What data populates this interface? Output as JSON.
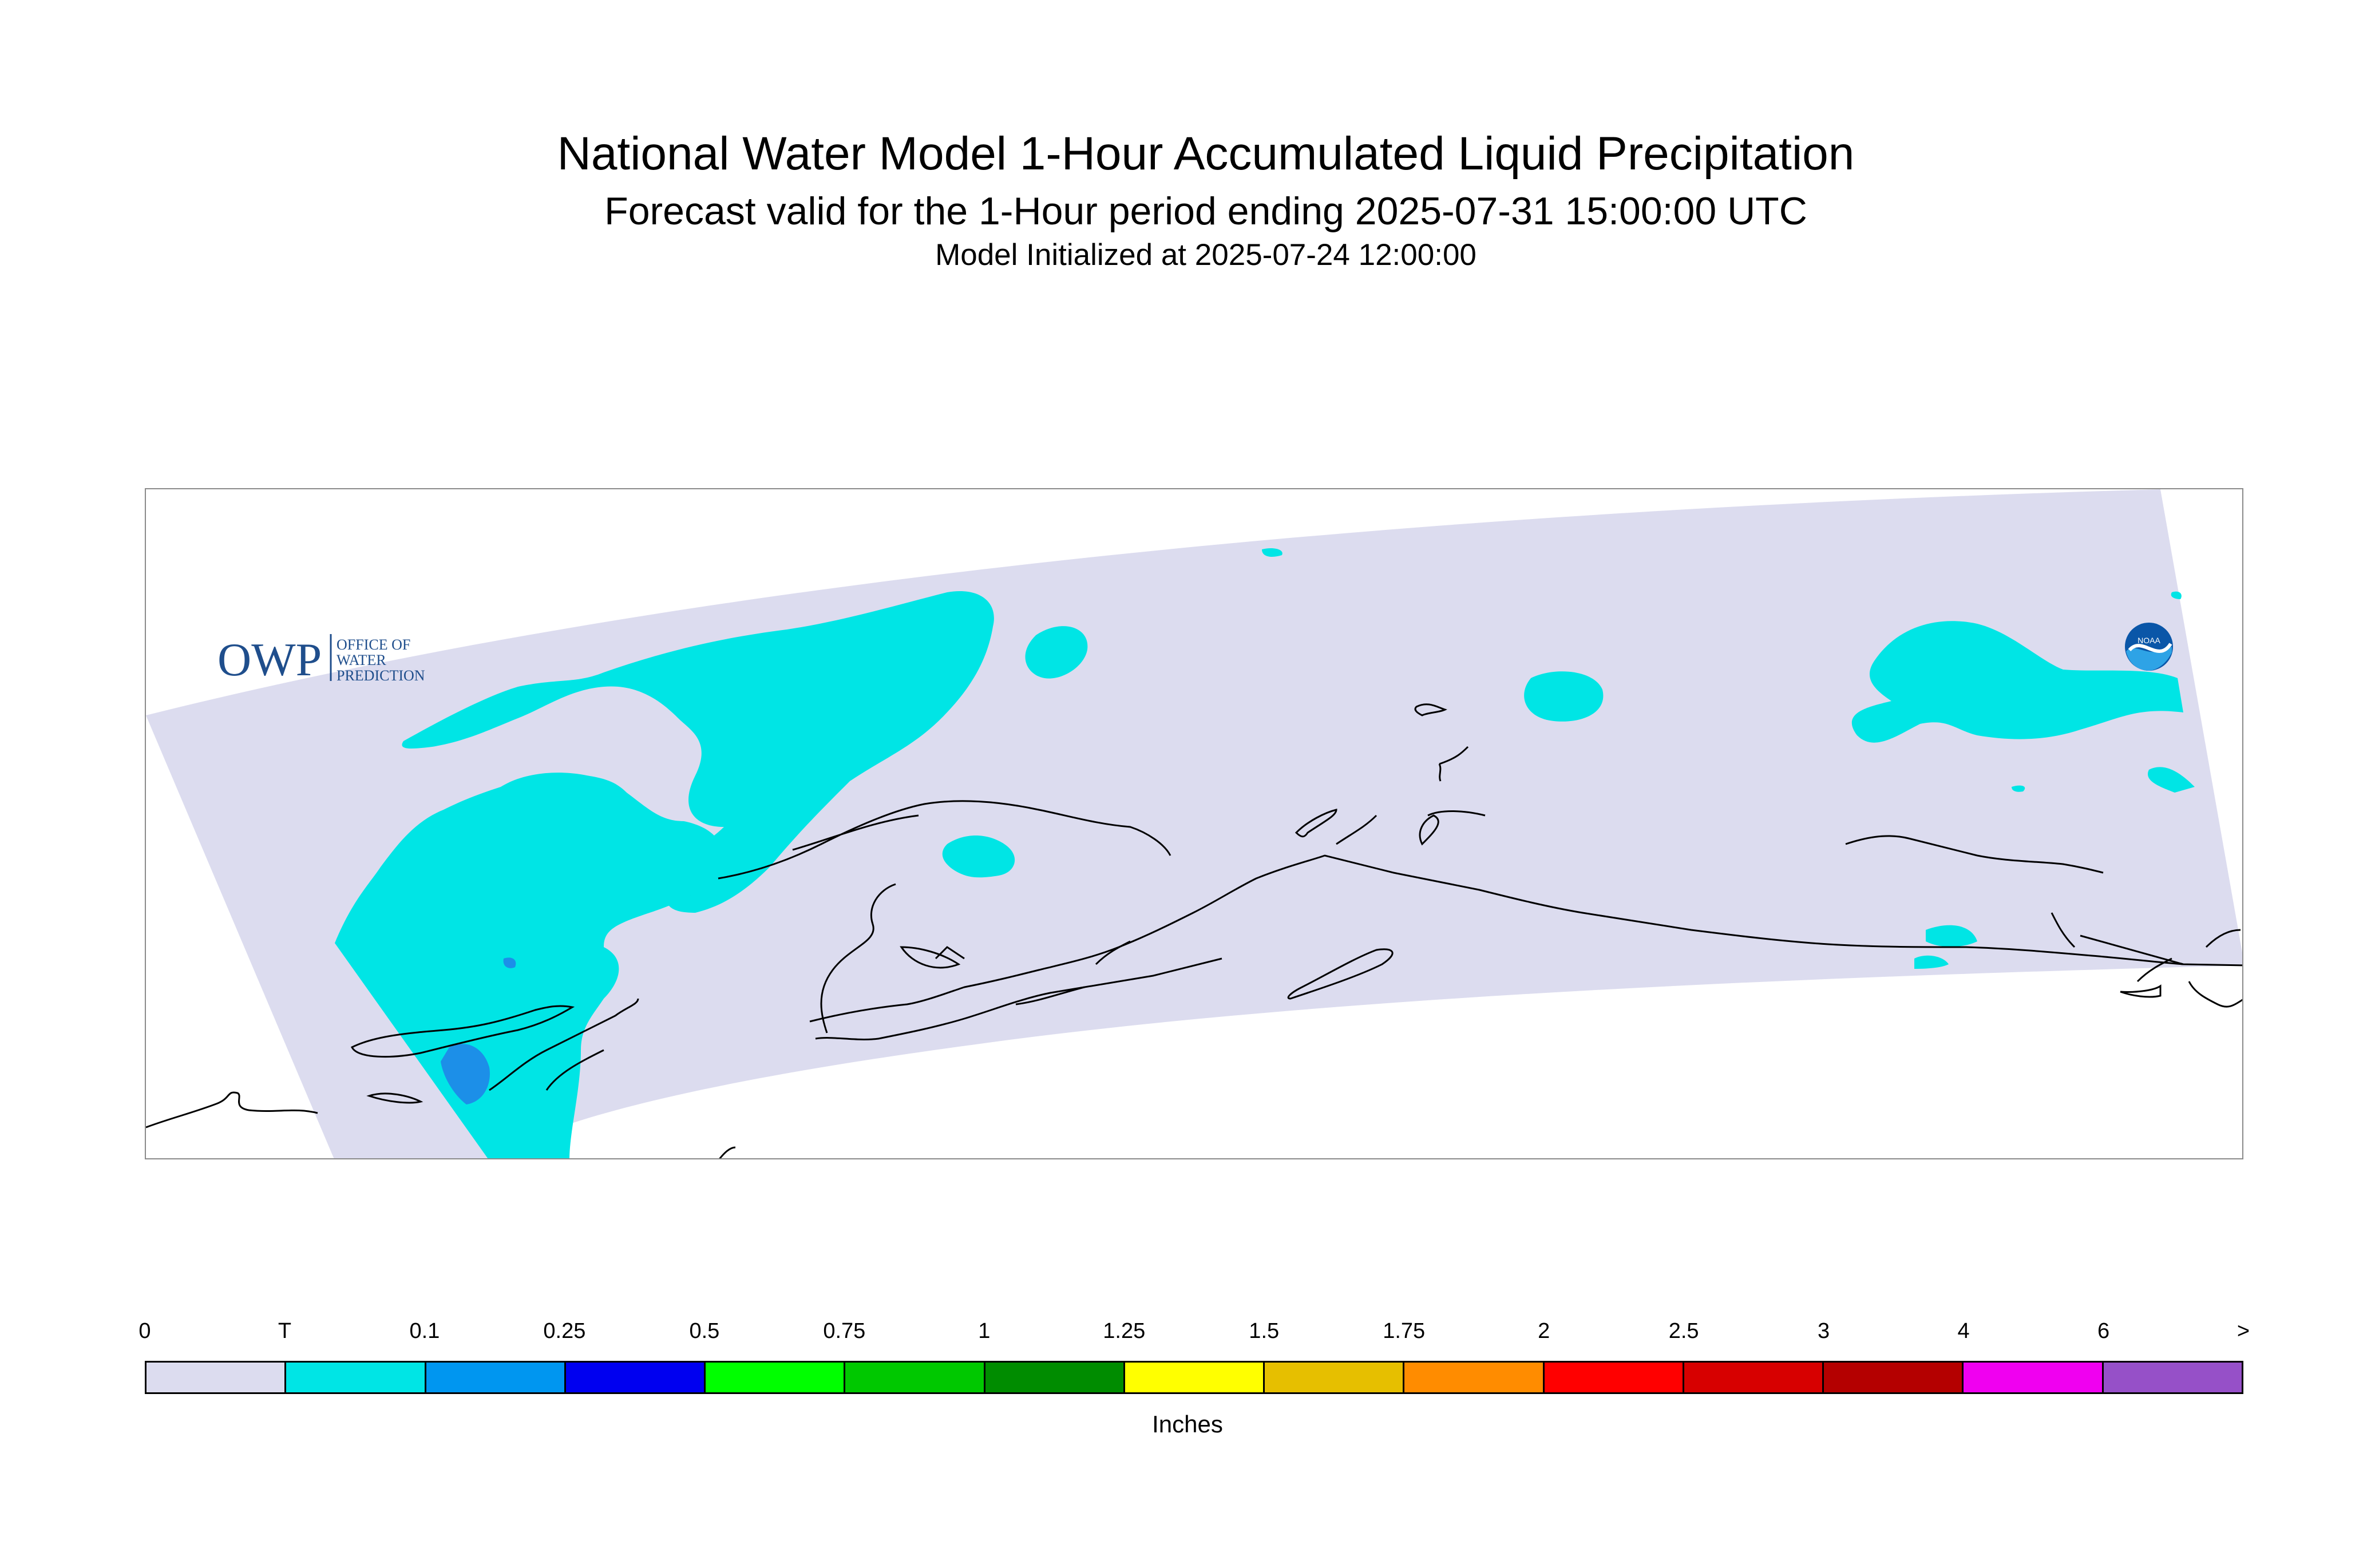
{
  "header": {
    "title": "National Water Model 1-Hour Accumulated Liquid Precipitation",
    "subtitle": "Forecast valid for the 1-Hour period ending 2025-07-31 15:00:00 UTC",
    "init_line": "Model Initialized at 2025-07-24 12:00:00"
  },
  "map": {
    "region": "Alaska",
    "domain_color": "#dcdcef",
    "trace_color": "#00e5e5",
    "light_color": "#1c8fe8",
    "coastline_color": "#000000"
  },
  "logos": {
    "owp_icon": "owp-logo-icon",
    "noaa_icon": "noaa-logo-icon"
  },
  "legend": {
    "labels": [
      "0",
      "T",
      "0.1",
      "0.25",
      "0.5",
      "0.75",
      "1",
      "1.25",
      "1.5",
      "1.75",
      "2",
      "2.5",
      "3",
      "4",
      "6",
      ">"
    ],
    "colors": [
      "#dcdcef",
      "#00e5e5",
      "#0096f0",
      "#0000f0",
      "#00ff00",
      "#00c800",
      "#008c00",
      "#ffff00",
      "#e6bf00",
      "#ff8c00",
      "#ff0000",
      "#d70000",
      "#b40000",
      "#f000f0",
      "#9650c8"
    ],
    "units": "Inches"
  }
}
